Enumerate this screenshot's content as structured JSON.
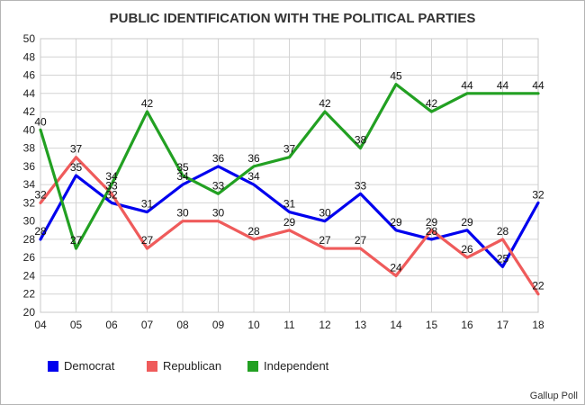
{
  "chart_data": {
    "type": "line",
    "title": "PUBLIC IDENTIFICATION WITH THE POLITICAL PARTIES",
    "xlabel": "",
    "ylabel": "",
    "categories": [
      "04",
      "05",
      "06",
      "07",
      "08",
      "09",
      "10",
      "11",
      "12",
      "13",
      "14",
      "15",
      "16",
      "17",
      "18"
    ],
    "ylim": [
      20,
      50
    ],
    "ytick_step": 2,
    "grid": true,
    "legend": "bottom-left",
    "series": [
      {
        "name": "Democrat",
        "color": "#0000ee",
        "values": [
          28,
          35,
          32,
          31,
          34,
          36,
          34,
          31,
          30,
          33,
          29,
          28,
          29,
          25,
          32
        ]
      },
      {
        "name": "Republican",
        "color": "#ef5b5b",
        "values": [
          32,
          37,
          33,
          27,
          30,
          30,
          28,
          29,
          27,
          27,
          24,
          29,
          26,
          28,
          22
        ]
      },
      {
        "name": "Independent",
        "color": "#22a022",
        "values": [
          40,
          27,
          34,
          42,
          35,
          33,
          36,
          37,
          42,
          38,
          45,
          42,
          44,
          44,
          44
        ]
      }
    ],
    "source": "Gallup Poll"
  }
}
